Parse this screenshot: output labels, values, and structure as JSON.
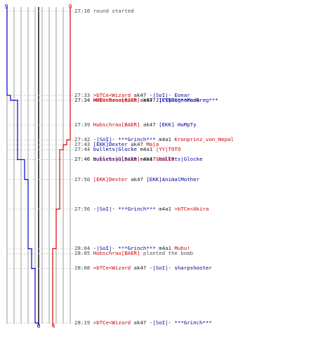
{
  "colors": {
    "team_a": "#0000cc",
    "team_b": "#dd0000",
    "killer_red": "#cc0000",
    "killer_blue": "#000099",
    "time_text": "#444444",
    "grid": "#999999",
    "center_line": "#000000",
    "guide": "#bbbbbb"
  },
  "chart_data": {
    "type": "line",
    "title": "",
    "xlabel": "",
    "ylabel": "",
    "x_ticks": [
      "0",
      "1",
      "2",
      "3",
      "4",
      "5",
      "6",
      "7",
      "8",
      "9"
    ],
    "time_range": [
      "27:16",
      "28:19"
    ],
    "series": [
      {
        "color": "#0000cc",
        "start_value": 9,
        "end_label": "0",
        "times": [
          "27:16",
          "27:33",
          "27:34",
          "27:34",
          "27:39",
          "27:43",
          "27:44",
          "27:46",
          "27:46",
          "27:50",
          "27:56",
          "28:04",
          "28:08",
          "28:19"
        ],
        "values": [
          9,
          8,
          7,
          6,
          6,
          6,
          6,
          5,
          4,
          3,
          3,
          2,
          1,
          0
        ]
      },
      {
        "color": "#dd0000",
        "start_value": 9,
        "end_label": "4",
        "times": [
          "27:16",
          "27:42",
          "27:43",
          "27:44",
          "27:56",
          "28:04",
          "28:19"
        ],
        "values": [
          9,
          8,
          7,
          6,
          5,
          4,
          4
        ]
      }
    ],
    "start_labels": [
      {
        "text": "9",
        "color": "#0000cc"
      },
      {
        "text": "9",
        "color": "#dd0000"
      }
    ],
    "end_labels": [
      {
        "text": "0",
        "color": "#0000cc"
      },
      {
        "text": "4",
        "color": "#dd0000"
      }
    ],
    "events": [
      {
        "time": "27:16",
        "parts": [
          {
            "text": "round started",
            "cls": "gray"
          }
        ]
      },
      {
        "time": "27:33",
        "parts": [
          {
            "text": ">bTCe<Wizard",
            "cls": "red"
          },
          {
            "text": " ak47 ",
            "cls": ""
          },
          {
            "text": "-|SoI|- Eonar",
            "cls": "blue"
          }
        ]
      },
      {
        "time": "27:34",
        "parts": [
          {
            "text": "Hubschrau[BAER]",
            "cls": "red"
          },
          {
            "text": " ak47 ",
            "cls": ""
          },
          {
            "text": "|YY|Ragnarock",
            "cls": "blue"
          }
        ]
      },
      {
        "time": "27:34",
        "parts": [
          {
            "text": "=MIV=BananaJoe",
            "cls": "red"
          },
          {
            "text": " ak47 ",
            "cls": ""
          },
          {
            "text": "JIC$NJC***MadGreg***",
            "cls": "blue"
          }
        ]
      },
      {
        "time": "27:39",
        "parts": [
          {
            "text": "Hubschrau[BAER]",
            "cls": "red"
          },
          {
            "text": " ak47 ",
            "cls": ""
          },
          {
            "text": "[EKK] HuMpTy",
            "cls": "blue"
          }
        ]
      },
      {
        "time": "27:42",
        "parts": [
          {
            "text": "-|SoI|- ***Grinch***",
            "cls": "blue"
          },
          {
            "text": " m4a1 ",
            "cls": ""
          },
          {
            "text": "Kronprinz_von_Nepal",
            "cls": "red"
          }
        ]
      },
      {
        "time": "27:43",
        "parts": [
          {
            "text": "[EKK]Dexter",
            "cls": "blue"
          },
          {
            "text": " ak47 ",
            "cls": ""
          },
          {
            "text": "Maja",
            "cls": "red"
          }
        ]
      },
      {
        "time": "27:44",
        "parts": [
          {
            "text": "bullets|Glocke",
            "cls": "blue"
          },
          {
            "text": " m4a1 ",
            "cls": ""
          },
          {
            "text": "|YY|TOTO",
            "cls": "red"
          }
        ]
      },
      {
        "time": "27:46",
        "parts": [
          {
            "text": "Hubschrau[BAER]",
            "cls": "red"
          },
          {
            "text": " ak47 ",
            "cls": ""
          },
          {
            "text": "bullets|Glocke",
            "cls": "blue"
          }
        ]
      },
      {
        "time": "27:46",
        "parts": [
          {
            "text": "bullets|Glocke",
            "cls": "blue"
          },
          {
            "text": " m4a1 ",
            "cls": ""
          },
          {
            "text": "$HALER",
            "cls": "red"
          }
        ]
      },
      {
        "time": "27:50",
        "parts": [
          {
            "text": "[EKK]Dexter",
            "cls": "red"
          },
          {
            "text": " ak47 ",
            "cls": ""
          },
          {
            "text": "[EKK]AnimalMother",
            "cls": "blue"
          }
        ]
      },
      {
        "time": "27:56",
        "parts": [
          {
            "text": "-|SoI|- ***Grinch***",
            "cls": "blue"
          },
          {
            "text": " m4a1 ",
            "cls": ""
          },
          {
            "text": ">bTCe<Akira",
            "cls": "red"
          }
        ]
      },
      {
        "time": "28:04",
        "parts": [
          {
            "text": "-|SoI|- ***Grinch***",
            "cls": "blue"
          },
          {
            "text": " m4a1 ",
            "cls": ""
          },
          {
            "text": "Muhu!",
            "cls": "red"
          }
        ]
      },
      {
        "time": "28:05",
        "parts": [
          {
            "text": "Hubschrau[BAER]",
            "cls": "red"
          },
          {
            "text": " planted the bomb",
            "cls": "gray"
          }
        ]
      },
      {
        "time": "28:08",
        "parts": [
          {
            "text": ">bTCe<Wizard",
            "cls": "red"
          },
          {
            "text": " ak47 ",
            "cls": ""
          },
          {
            "text": "-|SoI|- sharpshooter",
            "cls": "blue"
          }
        ]
      },
      {
        "time": "28:19",
        "parts": [
          {
            "text": ">bTCe<Wizard",
            "cls": "red"
          },
          {
            "text": " ak47 ",
            "cls": ""
          },
          {
            "text": "-|SoI|- ***Grinch***",
            "cls": "blue"
          }
        ]
      }
    ]
  }
}
